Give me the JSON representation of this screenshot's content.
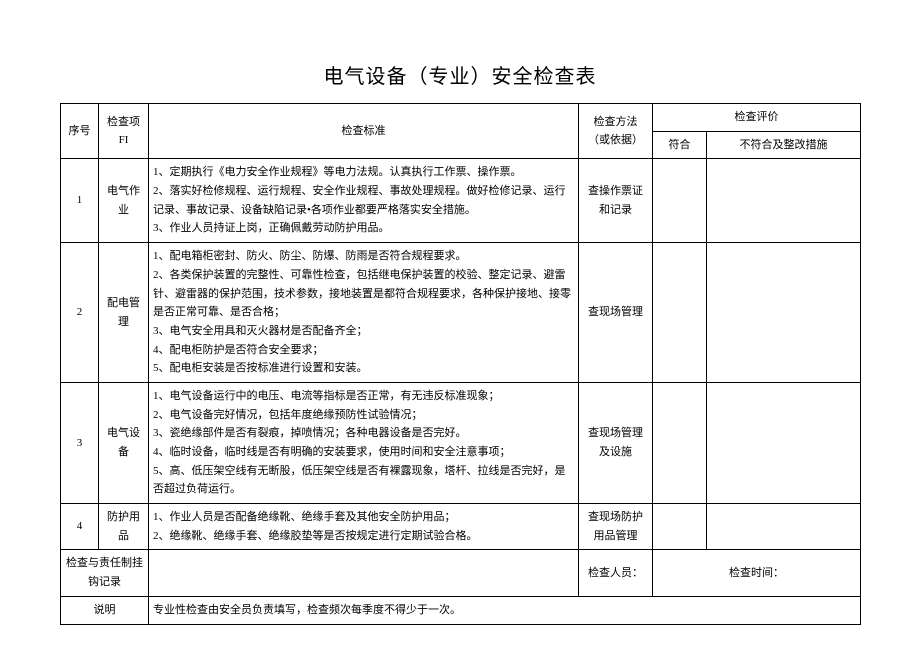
{
  "title": "电气设备（专业）安全检查表",
  "header": {
    "seq": "序号",
    "item_l1": "检查项",
    "item_l2": "FI",
    "standard": "检查标准",
    "method_l1": "检查方法",
    "method_l2": "（或依据）",
    "eval": "检查评价",
    "conform": "符合",
    "nonconform": "不符合及整改措施"
  },
  "rows": [
    {
      "seq": "1",
      "item": "电气作业",
      "standard": "1、定期执行《电力安全作业规程》等电力法规。认真执行工作票、操作票。\n2、落实好检修规程、运行规程、安全作业规程、事故处理规程。做好检修记录、运行记录、事故记录、设备缺陷记录•各项作业都要严格落实安全措施。\n3、作业人员持证上岗，正确佩戴劳动防护用品。",
      "method": "查操作票证和记录"
    },
    {
      "seq": "2",
      "item": "配电管理",
      "standard": "1、配电箱柜密封、防火、防尘、防爆、防雨是否符合规程要求。\n2、各类保护装置的完整性、可靠性检查，包括继电保护装置的校验、整定记录、避雷针、避雷器的保护范围，技术参数，接地装置是都符合规程要求，各种保护接地、接零是否正常可靠、是否合格；\n3、电气安全用具和灭火器材是否配备齐全；\n4、配电柜防护是否符合安全要求；\n5、配电柜安装是否按标准进行设置和安装。",
      "method": "查现场管理"
    },
    {
      "seq": "3",
      "item": "电气设备",
      "standard": "1、电气设备运行中的电压、电流等指标是否正常，有无违反标准现象；\n2、电气设备完好情况，包括年度绝缘预防性试验情况；\n3、瓷绝缘部件是否有裂痕，掉喷情况；各种电器设备是否完好。\n4、临时设备，临时线是否有明确的安装要求，使用时间和安全注意事项；\n5、高、低压架空线有无断股，低压架空线是否有裸露现象，塔杆、拉线是否完好，是否超过负荷运行。",
      "method": "查现场管理及设施"
    },
    {
      "seq": "4",
      "item": "防护用品",
      "standard": "1、作业人员是否配备绝缘靴、绝缘手套及其他安全防护用品；\n2、绝缘靴、绝缘手套、绝缘胶垫等是否按规定进行定期试验合格。",
      "method": "查现场防护用品管理"
    }
  ],
  "footer": {
    "hook_label": "检查与责任制挂钩记录",
    "inspector_label": "检查人员：",
    "time_label": "检查时间：",
    "note_label": "说明",
    "note_text": "专业性检查由安全员负责填写，检查频次每季度不得少于一次。"
  }
}
